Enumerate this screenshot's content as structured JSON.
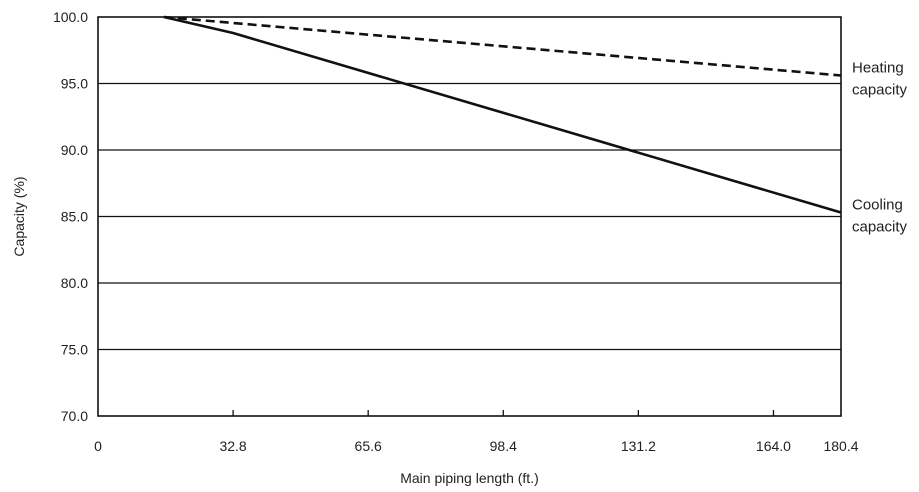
{
  "chart_data": {
    "type": "line",
    "xlabel": "Main piping length (ft.)",
    "ylabel": "Capacity (%)",
    "xlim": [
      0,
      180.4
    ],
    "ylim": [
      70.0,
      100.0
    ],
    "x_ticks": [
      "0",
      "32.8",
      "65.6",
      "98.4",
      "131.2",
      "164.0",
      "180.4"
    ],
    "x_tick_values": [
      0,
      32.8,
      65.6,
      98.4,
      131.2,
      164.0,
      180.4
    ],
    "y_ticks": [
      "100.0",
      "95.0",
      "90.0",
      "85.0",
      "80.0",
      "75.0",
      "70.0"
    ],
    "y_tick_values": [
      100,
      95,
      90,
      85,
      80,
      75,
      70
    ],
    "grid": "horizontal",
    "series": [
      {
        "name": "Heating capacity",
        "label_lines": [
          "Heating",
          "capacity"
        ],
        "style": "dashed",
        "color": "#111111",
        "x": [
          16,
          180.4
        ],
        "y": [
          100.0,
          95.6
        ]
      },
      {
        "name": "Cooling capacity",
        "label_lines": [
          "Cooling",
          "capacity"
        ],
        "style": "solid",
        "color": "#111111",
        "x": [
          16,
          32.8,
          180.4
        ],
        "y": [
          100.0,
          98.8,
          85.3
        ]
      }
    ]
  }
}
